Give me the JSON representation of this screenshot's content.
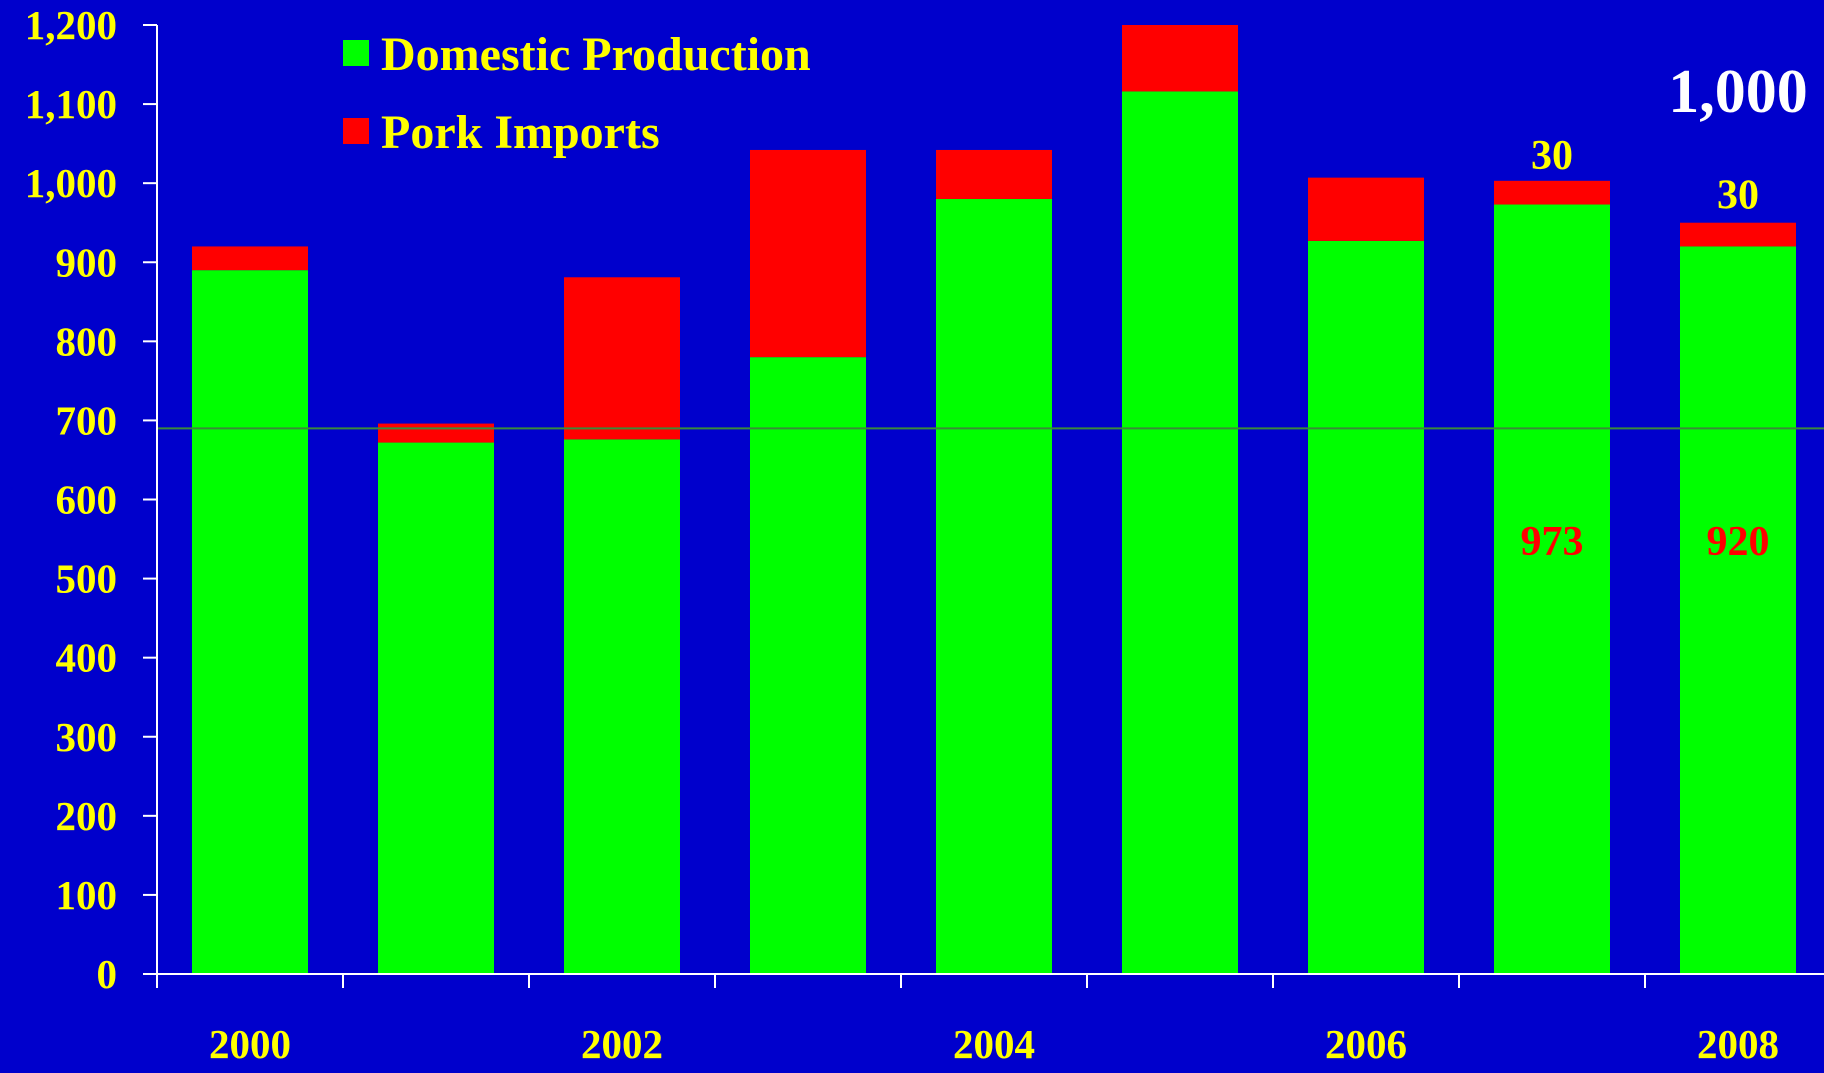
{
  "colors": {
    "background": "#0000CC",
    "domestic": "#00FF00",
    "imports": "#FF0000",
    "axis_text": "#FFFF00",
    "axis_line": "#FFFFFF",
    "annotation_white": "#FFFFFF",
    "annotation_yellow": "#FFFF00",
    "annotation_red": "#FF0000",
    "reference_line": "#3A8A3A"
  },
  "chart_data": {
    "type": "bar",
    "stacked": true,
    "categories": [
      "2000",
      "2001",
      "2002",
      "2003",
      "2004",
      "2005",
      "2006",
      "2007",
      "2008"
    ],
    "x_tick_labels": [
      "2000",
      "",
      "2002",
      "",
      "2004",
      "",
      "2006",
      "",
      "2008"
    ],
    "series": [
      {
        "name": "Domestic Production",
        "color": "#00FF00",
        "values": [
          890,
          672,
          676,
          780,
          980,
          1116,
          927,
          973,
          920
        ]
      },
      {
        "name": "Pork Imports",
        "color": "#FF0000",
        "values": [
          30,
          24,
          205,
          262,
          62,
          84,
          80,
          30,
          30
        ]
      }
    ],
    "ylim": [
      0,
      1200
    ],
    "yticks": [
      0,
      100,
      200,
      300,
      400,
      500,
      600,
      700,
      800,
      900,
      1000,
      1100,
      1200
    ],
    "ytick_labels": [
      "0",
      "100",
      "200",
      "300",
      "400",
      "500",
      "600",
      "700",
      "800",
      "900",
      "1,000",
      "1,100",
      "1,200"
    ],
    "reference_line": 690,
    "legend_position": "top-left",
    "annotations": [
      {
        "text": "1,000",
        "category": "2008",
        "y": 1090,
        "color": "#FFFFFF",
        "size": "large"
      },
      {
        "text": "30",
        "category": "2007",
        "y": 1018,
        "color": "#FFFF00",
        "size": "medium"
      },
      {
        "text": "30",
        "category": "2008",
        "y": 968,
        "color": "#FFFF00",
        "size": "medium"
      },
      {
        "text": "973",
        "category": "2007",
        "y": 530,
        "color": "#FF0000",
        "size": "medium"
      },
      {
        "text": "920",
        "category": "2008",
        "y": 530,
        "color": "#FF0000",
        "size": "medium"
      }
    ]
  }
}
